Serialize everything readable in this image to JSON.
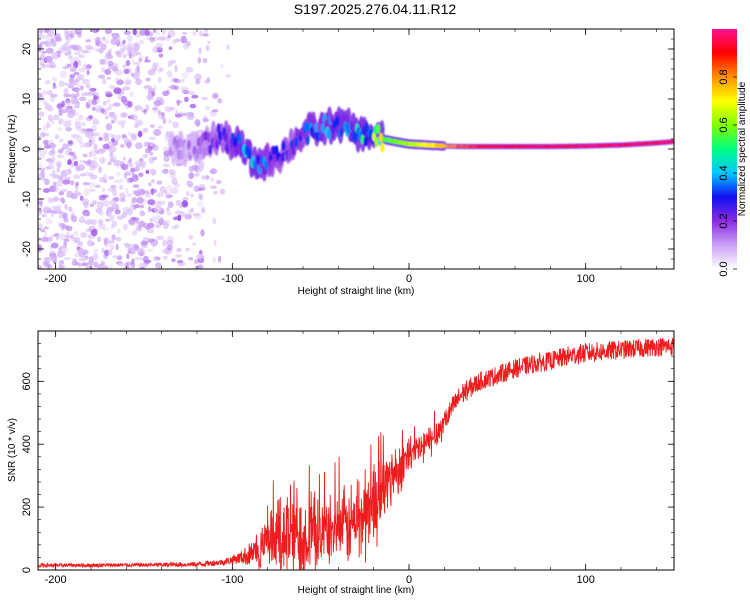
{
  "title": "S197.2025.276.04.11.R12",
  "chart_data": [
    {
      "type": "heatmap",
      "xlabel": "Height of straight line (km)",
      "ylabel": "Frequency (Hz)",
      "xlim": [
        -210,
        150
      ],
      "ylim": [
        -24,
        24
      ],
      "xticks": [
        -200,
        -100,
        0,
        100
      ],
      "yticks": [
        -20,
        -10,
        0,
        10,
        20
      ],
      "colorbar": {
        "label": "Normalized spectral amplitude",
        "range": [
          0,
          1
        ],
        "ticks": [
          "0.0",
          "0.2",
          "0.4",
          "0.6",
          "0.8"
        ],
        "colors": [
          "#ffffff",
          "#c9a0f5",
          "#8a2be2",
          "#1010f0",
          "#00c8ff",
          "#00ff80",
          "#80ff00",
          "#ffff00",
          "#ff9000",
          "#ff0000",
          "#ff1090"
        ]
      },
      "ridge": [
        {
          "x": -135,
          "y": 0.5,
          "amp": 0.1
        },
        {
          "x": -120,
          "y": 0.0,
          "amp": 0.12
        },
        {
          "x": -108,
          "y": 2.5,
          "amp": 0.22
        },
        {
          "x": -95,
          "y": 0.5,
          "amp": 0.3
        },
        {
          "x": -88,
          "y": -3.0,
          "amp": 0.32
        },
        {
          "x": -80,
          "y": -2.5,
          "amp": 0.28
        },
        {
          "x": -72,
          "y": -1.0,
          "amp": 0.22
        },
        {
          "x": -65,
          "y": 1.5,
          "amp": 0.25
        },
        {
          "x": -58,
          "y": 3.5,
          "amp": 0.28
        },
        {
          "x": -50,
          "y": 4.0,
          "amp": 0.3
        },
        {
          "x": -42,
          "y": 5.0,
          "amp": 0.32
        },
        {
          "x": -35,
          "y": 4.5,
          "amp": 0.3
        },
        {
          "x": -28,
          "y": 3.0,
          "amp": 0.36
        },
        {
          "x": -22,
          "y": 3.0,
          "amp": 0.45
        },
        {
          "x": -15,
          "y": 2.0,
          "amp": 0.55
        },
        {
          "x": -8,
          "y": 1.5,
          "amp": 0.6
        },
        {
          "x": 0,
          "y": 1.0,
          "amp": 0.65
        },
        {
          "x": 10,
          "y": 0.8,
          "amp": 0.72
        },
        {
          "x": 20,
          "y": 0.6,
          "amp": 0.8
        },
        {
          "x": 30,
          "y": 0.5,
          "amp": 0.88
        },
        {
          "x": 40,
          "y": 0.5,
          "amp": 0.93
        },
        {
          "x": 60,
          "y": 0.5,
          "amp": 0.97
        },
        {
          "x": 80,
          "y": 0.5,
          "amp": 0.98
        },
        {
          "x": 100,
          "y": 0.6,
          "amp": 1.0
        },
        {
          "x": 120,
          "y": 0.8,
          "amp": 1.0
        },
        {
          "x": 140,
          "y": 1.2,
          "amp": 1.0
        },
        {
          "x": 150,
          "y": 1.5,
          "amp": 1.0
        }
      ]
    },
    {
      "type": "line",
      "xlabel": "Height of straight line (km)",
      "ylabel": "SNR (10 * v/v)",
      "xlim": [
        -210,
        150
      ],
      "ylim": [
        0,
        760
      ],
      "xticks": [
        -200,
        -100,
        0,
        100
      ],
      "yticks": [
        0,
        200,
        400,
        600
      ],
      "series": [
        {
          "name": "SNR",
          "color": "#ee1c1c",
          "x": [
            -210,
            -180,
            -150,
            -120,
            -105,
            -95,
            -85,
            -78,
            -72,
            -65,
            -58,
            -50,
            -42,
            -35,
            -28,
            -22,
            -15,
            -10,
            -5,
            0,
            5,
            10,
            15,
            20,
            25,
            30,
            40,
            50,
            60,
            70,
            80,
            90,
            100,
            110,
            120,
            130,
            140,
            150
          ],
          "y": [
            15,
            15,
            16,
            18,
            25,
            40,
            60,
            85,
            110,
            120,
            110,
            120,
            130,
            140,
            160,
            200,
            250,
            300,
            330,
            360,
            380,
            400,
            430,
            470,
            520,
            560,
            600,
            620,
            640,
            655,
            665,
            680,
            690,
            695,
            700,
            705,
            710,
            712
          ],
          "noise": [
            6,
            6,
            6,
            8,
            10,
            20,
            60,
            90,
            140,
            150,
            120,
            100,
            90,
            110,
            150,
            130,
            110,
            90,
            70,
            60,
            55,
            50,
            45,
            40,
            35,
            35,
            30,
            30,
            30,
            30,
            30,
            32,
            32,
            32,
            30,
            30,
            30,
            30
          ]
        }
      ]
    }
  ]
}
